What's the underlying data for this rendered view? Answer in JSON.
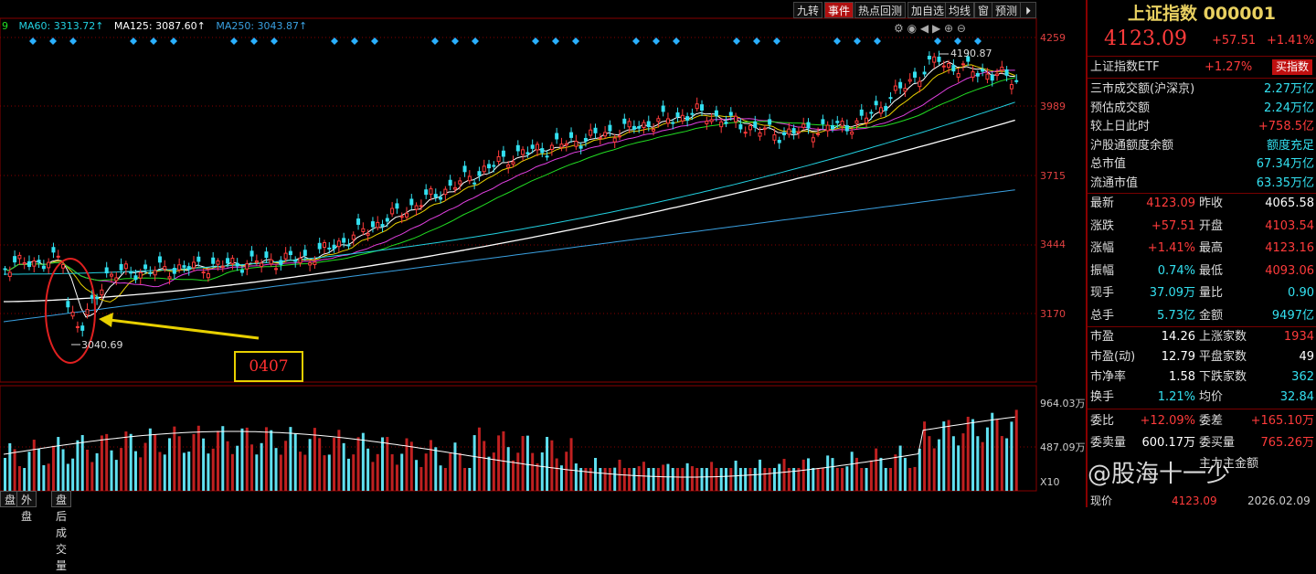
{
  "toolbar": {
    "items": [
      "九转",
      "事件",
      "热点回测",
      "加自选",
      "均线",
      "窗",
      "预测"
    ]
  },
  "ma_legend": [
    {
      "label": "9",
      "color": "#22dd22"
    },
    {
      "label": "MA60: 3313.72↑",
      "color": "#22d0e0"
    },
    {
      "label": "MA125: 3087.60↑",
      "color": "#ffffff"
    },
    {
      "label": "MA250: 3043.87↑",
      "color": "#3aa0e0"
    }
  ],
  "price_axis": [
    "4259",
    "3989",
    "3715",
    "3444",
    "3170"
  ],
  "volume_axis": [
    "964.03万",
    "487.09万",
    "X10"
  ],
  "chart_annotations": {
    "high_label": "4190.87",
    "low_label": "3040.69",
    "box_label": "0407"
  },
  "bottom_tabs": [
    "盘",
    "外盘",
    "盘后成交量"
  ],
  "panel": {
    "title": "上证指数 000001",
    "price": "4123.09",
    "change": "+57.51",
    "change_pct": "+1.41%",
    "etf_label": "上证指数ETF",
    "etf_pct": "+1.27%",
    "etf_button": "买指数",
    "stats": [
      {
        "label": "三市成交额(沪深京)",
        "value": "2.27万亿",
        "color": "cyan"
      },
      {
        "label": "预估成交额",
        "value": "2.24万亿",
        "color": "cyan"
      },
      {
        "label": "较上日此时",
        "value": "+758.5亿",
        "color": "red"
      },
      {
        "label": "沪股通额度余额",
        "value": "额度充足",
        "color": "cyan"
      },
      {
        "label": "总市值",
        "value": "67.34万亿",
        "color": "cyan"
      },
      {
        "label": "流通市值",
        "value": "63.35万亿",
        "color": "cyan"
      }
    ],
    "quotes": [
      {
        "l1": "最新",
        "v1": "4123.09",
        "c1": "red",
        "l2": "昨收",
        "v2": "4065.58",
        "c2": "white"
      },
      {
        "l1": "涨跌",
        "v1": "+57.51",
        "c1": "red",
        "l2": "开盘",
        "v2": "4103.54",
        "c2": "red"
      },
      {
        "l1": "涨幅",
        "v1": "+1.41%",
        "c1": "red",
        "l2": "最高",
        "v2": "4123.16",
        "c2": "red"
      },
      {
        "l1": "振幅",
        "v1": "0.74%",
        "c1": "cyan",
        "l2": "最低",
        "v2": "4093.06",
        "c2": "red"
      },
      {
        "l1": "现手",
        "v1": "37.09万",
        "c1": "cyan",
        "l2": "量比",
        "v2": "0.90",
        "c2": "cyan"
      },
      {
        "l1": "总手",
        "v1": "5.73亿",
        "c1": "cyan",
        "l2": "金额",
        "v2": "9497亿",
        "c2": "cyan"
      }
    ],
    "breadth": [
      {
        "l1": "市盈",
        "v1": "14.26",
        "c1": "white",
        "l2": "上涨家数",
        "v2": "1934",
        "c2": "red"
      },
      {
        "l1": "市盈(动)",
        "v1": "12.79",
        "c1": "white",
        "l2": "平盘家数",
        "v2": "49",
        "c2": "white"
      },
      {
        "l1": "市净率",
        "v1": "1.58",
        "c1": "white",
        "l2": "下跌家数",
        "v2": "362",
        "c2": "cyan"
      },
      {
        "l1": "换手",
        "v1": "1.21%",
        "c1": "cyan",
        "l2": "均价",
        "v2": "32.84",
        "c2": "cyan"
      }
    ],
    "orders": [
      {
        "l1": "委比",
        "v1": "+12.09%",
        "c1": "red",
        "l2": "委差",
        "v2": "+165.10万",
        "c2": "red"
      },
      {
        "l1": "委卖量",
        "v1": "600.17万",
        "c1": "white",
        "l2": "委买量",
        "v2": "765.26万",
        "c2": "red"
      },
      {
        "l1": "",
        "v1": "",
        "c1": "white",
        "l2": "主力主金额",
        "v2": "",
        "c2": "white"
      }
    ],
    "footer": {
      "label": "现价",
      "price": "4123.09",
      "date": "2026.02.09"
    }
  },
  "watermark": "@股海十一少",
  "colors": {
    "up": "#ff3b3b",
    "down": "#33e0f0",
    "ma5": "#ffffff",
    "ma10": "#e8d000",
    "ma20": "#e040e0",
    "ma30": "#22dd22",
    "ma60": "#22d0e0",
    "ma125": "#ffffff",
    "ma250": "#3aa0e0",
    "accent": "#e8d000"
  }
}
